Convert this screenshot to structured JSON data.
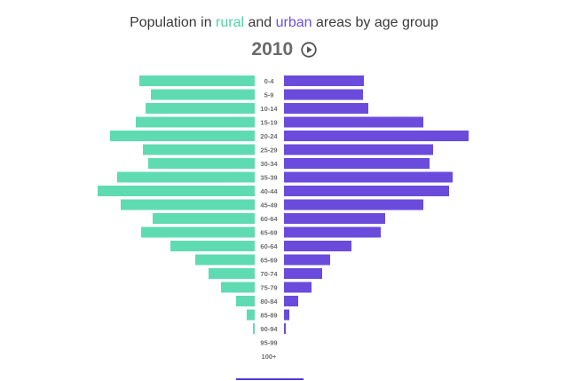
{
  "title": {
    "prefix": "Population in ",
    "rural_word": "rural",
    "middle": " and ",
    "urban_word": "urban",
    "suffix": " areas by age group"
  },
  "year": "2010",
  "colors": {
    "rural": "#5fdbb2",
    "urban": "#6a4bdc",
    "title_rural": "#4fd1a6",
    "title_urban": "#6b4fe0"
  },
  "icons": {
    "play": "play-circle-icon"
  },
  "chart_data": {
    "type": "bar",
    "orientation": "horizontal-pyramid",
    "categories": [
      "0-4",
      "5-9",
      "10-14",
      "15-19",
      "20-24",
      "25-29",
      "30-34",
      "35-39",
      "40-44",
      "45-49",
      "60-64",
      "65-69",
      "60-64",
      "65-69",
      "70-74",
      "75-79",
      "80-84",
      "85-89",
      "90-94",
      "95-99",
      "100+"
    ],
    "series": [
      {
        "name": "rural",
        "values": [
          130,
          117,
          123,
          134,
          163,
          126,
          120,
          155,
          177,
          151,
          115,
          128,
          95,
          67,
          52,
          38,
          21,
          9,
          2,
          0,
          0
        ]
      },
      {
        "name": "urban",
        "values": [
          90,
          89,
          95,
          157,
          208,
          168,
          164,
          190,
          186,
          157,
          114,
          109,
          76,
          52,
          43,
          31,
          16,
          6,
          2,
          0,
          0
        ]
      }
    ],
    "xlim": [
      0,
      210
    ]
  }
}
